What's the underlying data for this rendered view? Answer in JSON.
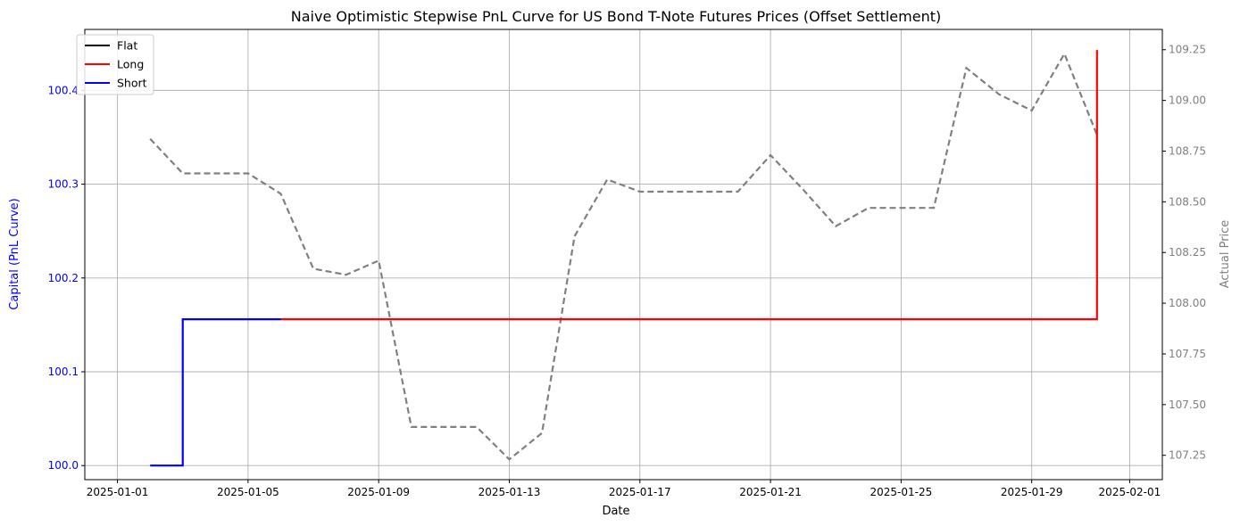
{
  "chart_data": {
    "type": "line",
    "title": "Naive Optimistic Stepwise PnL Curve for US Bond T-Note Futures Prices (Offset Settlement)",
    "xlabel": "Date",
    "ylabel_left": "Capital (PnL Curve)",
    "ylabel_right": "Actual Price",
    "left_axis_color": "#0000ff",
    "right_axis_color": "#808080",
    "grid": true,
    "legend_position": "top-left",
    "xlim": [
      "2024-12-31",
      "2025-02-02"
    ],
    "ylim_left": [
      99.985,
      100.465
    ],
    "ylim_right": [
      107.13,
      109.35
    ],
    "x_ticks": [
      "2025-01-01",
      "2025-01-05",
      "2025-01-09",
      "2025-01-13",
      "2025-01-17",
      "2025-01-21",
      "2025-01-25",
      "2025-01-29",
      "2025-02-01"
    ],
    "y_ticks_left": [
      "100.0",
      "100.1",
      "100.2",
      "100.3",
      "100.4"
    ],
    "y_ticks_right": [
      "107.25",
      "107.50",
      "107.75",
      "108.00",
      "108.25",
      "108.50",
      "108.75",
      "109.00",
      "109.25"
    ],
    "legend": [
      {
        "label": "Flat",
        "color": "#000000"
      },
      {
        "label": "Long",
        "color": "#ff0000"
      },
      {
        "label": "Short",
        "color": "#0000ff"
      }
    ],
    "pnl_segments": [
      {
        "position": "Short",
        "color": "#0000ff",
        "dates": [
          "2025-01-02",
          "2025-01-03",
          "2025-01-03",
          "2025-01-06"
        ],
        "values": [
          100.0,
          100.0,
          100.156,
          100.156
        ]
      },
      {
        "position": "Long",
        "color": "#ff0000",
        "dates": [
          "2025-01-06",
          "2025-01-31",
          "2025-01-31"
        ],
        "values": [
          100.156,
          100.156,
          100.443
        ]
      }
    ],
    "price_series": {
      "name": "Actual Price",
      "color": "#808080",
      "style": "dashed",
      "dates": [
        "2025-01-02",
        "2025-01-03",
        "2025-01-04",
        "2025-01-05",
        "2025-01-06",
        "2025-01-07",
        "2025-01-08",
        "2025-01-09",
        "2025-01-10",
        "2025-01-11",
        "2025-01-12",
        "2025-01-13",
        "2025-01-14",
        "2025-01-15",
        "2025-01-16",
        "2025-01-17",
        "2025-01-18",
        "2025-01-19",
        "2025-01-20",
        "2025-01-21",
        "2025-01-22",
        "2025-01-23",
        "2025-01-24",
        "2025-01-25",
        "2025-01-26",
        "2025-01-27",
        "2025-01-28",
        "2025-01-29",
        "2025-01-30",
        "2025-01-31"
      ],
      "values": [
        108.81,
        108.64,
        108.64,
        108.64,
        108.54,
        108.17,
        108.14,
        108.21,
        107.39,
        107.39,
        107.39,
        107.23,
        107.36,
        108.33,
        108.61,
        108.55,
        108.55,
        108.55,
        108.55,
        108.73,
        108.56,
        108.38,
        108.47,
        108.47,
        108.47,
        109.16,
        109.03,
        108.95,
        109.23,
        108.83
      ]
    }
  }
}
